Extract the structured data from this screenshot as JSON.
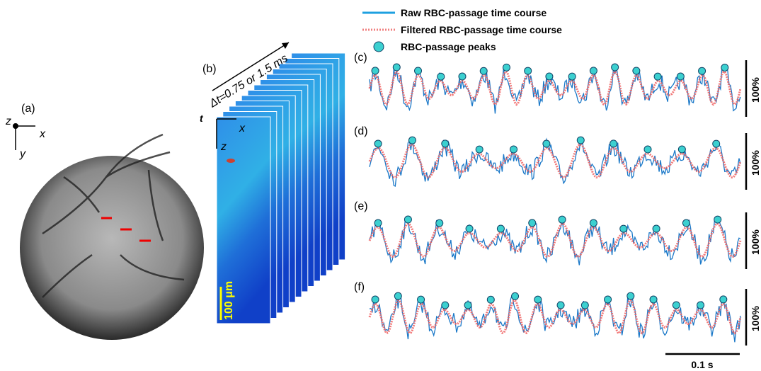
{
  "panel_a": {
    "label": "(a)",
    "axes": {
      "z": "z",
      "x": "x",
      "y": "y"
    }
  },
  "panel_b": {
    "label": "(b)",
    "time_step": "Δt=0.75 or 1.5 ms",
    "axes": {
      "t": "t",
      "x": "x",
      "z": "z"
    },
    "scale_bar": "100 μm"
  },
  "legend": [
    "Raw RBC-passage time course",
    "Filtered RBC-passage time course",
    "RBC-passage peaks"
  ],
  "traces": [
    {
      "label": "(c)",
      "scale": "100%"
    },
    {
      "label": "(d)",
      "scale": "100%"
    },
    {
      "label": "(e)",
      "scale": "100%"
    },
    {
      "label": "(f)",
      "scale": "100%"
    }
  ],
  "time_scale": "0.1 s"
}
